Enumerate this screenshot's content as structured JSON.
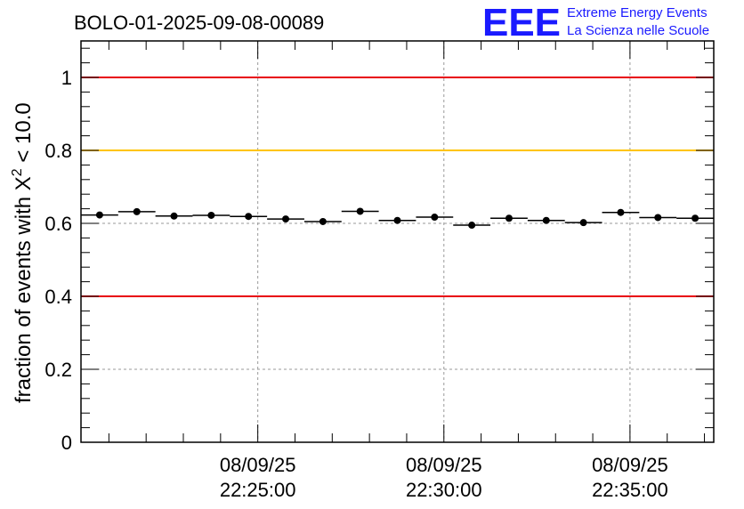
{
  "chart_data": {
    "type": "scatter",
    "title": "BOLO-01-2025-09-08-00089",
    "ylabel": "fraction of events with X",
    "ylabel_superscript": "2",
    "ylabel_suffix": " < 10.0",
    "ylim": [
      0,
      1.1
    ],
    "yticks": [
      {
        "value": 0,
        "label": "0"
      },
      {
        "value": 0.2,
        "label": "0.2"
      },
      {
        "value": 0.4,
        "label": "0.4"
      },
      {
        "value": 0.6,
        "label": "0.6"
      },
      {
        "value": 0.8,
        "label": "0.8"
      },
      {
        "value": 1.0,
        "label": "1"
      }
    ],
    "xlim_seconds": [
      0,
      1020
    ],
    "xticks": [
      {
        "value": 285,
        "date": "08/09/25",
        "time": "22:25:00"
      },
      {
        "value": 585,
        "date": "08/09/25",
        "time": "22:30:00"
      },
      {
        "value": 885,
        "date": "08/09/25",
        "time": "22:35:00"
      }
    ],
    "grid": true,
    "reference_lines": [
      {
        "value": 1.0,
        "color": "#e8000b"
      },
      {
        "value": 0.8,
        "color": "#ffc400"
      },
      {
        "value": 0.4,
        "color": "#e8000b"
      }
    ],
    "series": [
      {
        "name": "fraction",
        "bin_width_seconds": 60,
        "x": [
          30,
          90,
          150,
          210,
          270,
          330,
          390,
          450,
          510,
          570,
          630,
          690,
          750,
          810,
          870,
          930,
          990
        ],
        "y": [
          0.623,
          0.632,
          0.62,
          0.622,
          0.619,
          0.612,
          0.605,
          0.633,
          0.608,
          0.617,
          0.595,
          0.614,
          0.608,
          0.602,
          0.63,
          0.616,
          0.614
        ],
        "yerr": 0.005
      }
    ]
  },
  "logo": {
    "mark": "EEE",
    "line1": "Extreme Energy Events",
    "line2": "La Scienza nelle Scuole",
    "color": "#1a1aff"
  }
}
